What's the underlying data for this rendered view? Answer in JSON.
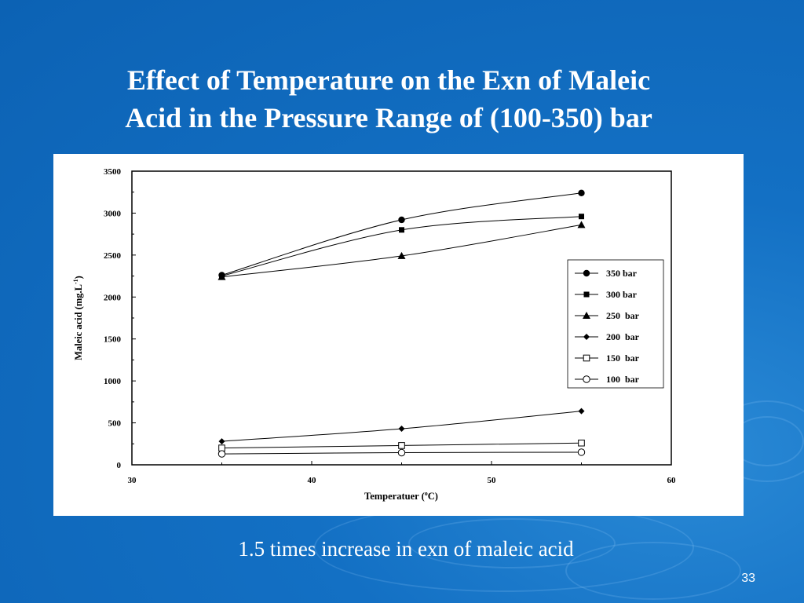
{
  "slide": {
    "title_line1": "Effect of Temperature on the Exn of Maleic",
    "title_line2": "Acid in the Pressure Range of (100-350) bar",
    "caption": "1.5 times increase in exn of maleic acid",
    "page_number": "33"
  },
  "colors": {
    "background": "#1370c4",
    "text": "#ffffff",
    "chart_bg": "#ffffff",
    "series": "#000000"
  },
  "chart_data": {
    "type": "line",
    "title": "",
    "xlabel": "Temperatuer (",
    "xlabel_sup": "o",
    "xlabel_end": "C)",
    "ylabel": "Maleic acid (mg.L",
    "ylabel_sup": "-1",
    "ylabel_end": ")",
    "xlim": [
      30,
      60
    ],
    "ylim": [
      0,
      3500
    ],
    "xticks": [
      30,
      40,
      50,
      60
    ],
    "yticks": [
      0,
      500,
      1000,
      1500,
      2000,
      2500,
      3000,
      3500
    ],
    "grid": false,
    "legend_position": "right",
    "x": [
      35,
      45,
      55
    ],
    "series": [
      {
        "name": "350 bar",
        "marker": "circle-filled",
        "values": [
          2260,
          2920,
          3240
        ]
      },
      {
        "name": "300 bar",
        "marker": "square-filled",
        "values": [
          2250,
          2800,
          2960
        ]
      },
      {
        "name": "250  bar",
        "marker": "triangle-filled",
        "values": [
          2240,
          2490,
          2860
        ]
      },
      {
        "name": "200  bar",
        "marker": "diamond-filled",
        "values": [
          280,
          430,
          640
        ]
      },
      {
        "name": "150  bar",
        "marker": "square-open",
        "values": [
          200,
          230,
          260
        ]
      },
      {
        "name": "100  bar",
        "marker": "circle-open",
        "values": [
          130,
          145,
          150
        ]
      }
    ]
  }
}
